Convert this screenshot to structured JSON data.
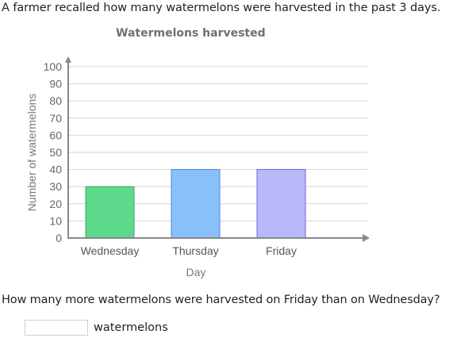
{
  "prompt": {
    "intro": "A farmer recalled how many watermelons were harvested in the past 3 days.",
    "question": "How many more watermelons were harvested on Friday than on Wednesday?"
  },
  "answer": {
    "value": "",
    "placeholder": "",
    "unit": "watermelons"
  },
  "chart_data": {
    "type": "bar",
    "title": "Watermelons harvested",
    "xlabel": "Day",
    "ylabel": "Number of watermelons",
    "categories": [
      "Wednesday",
      "Thursday",
      "Friday"
    ],
    "values": [
      30,
      40,
      40
    ],
    "colors": [
      "#5cd98a",
      "#89c0f9",
      "#b9b8f9"
    ],
    "border_colors": [
      "#3aa865",
      "#4a86e0",
      "#6b69d8"
    ],
    "ylim": [
      0,
      100
    ],
    "yticks": [
      0,
      10,
      20,
      30,
      40,
      50,
      60,
      70,
      80,
      90,
      100
    ],
    "grid": true,
    "legend": null
  }
}
